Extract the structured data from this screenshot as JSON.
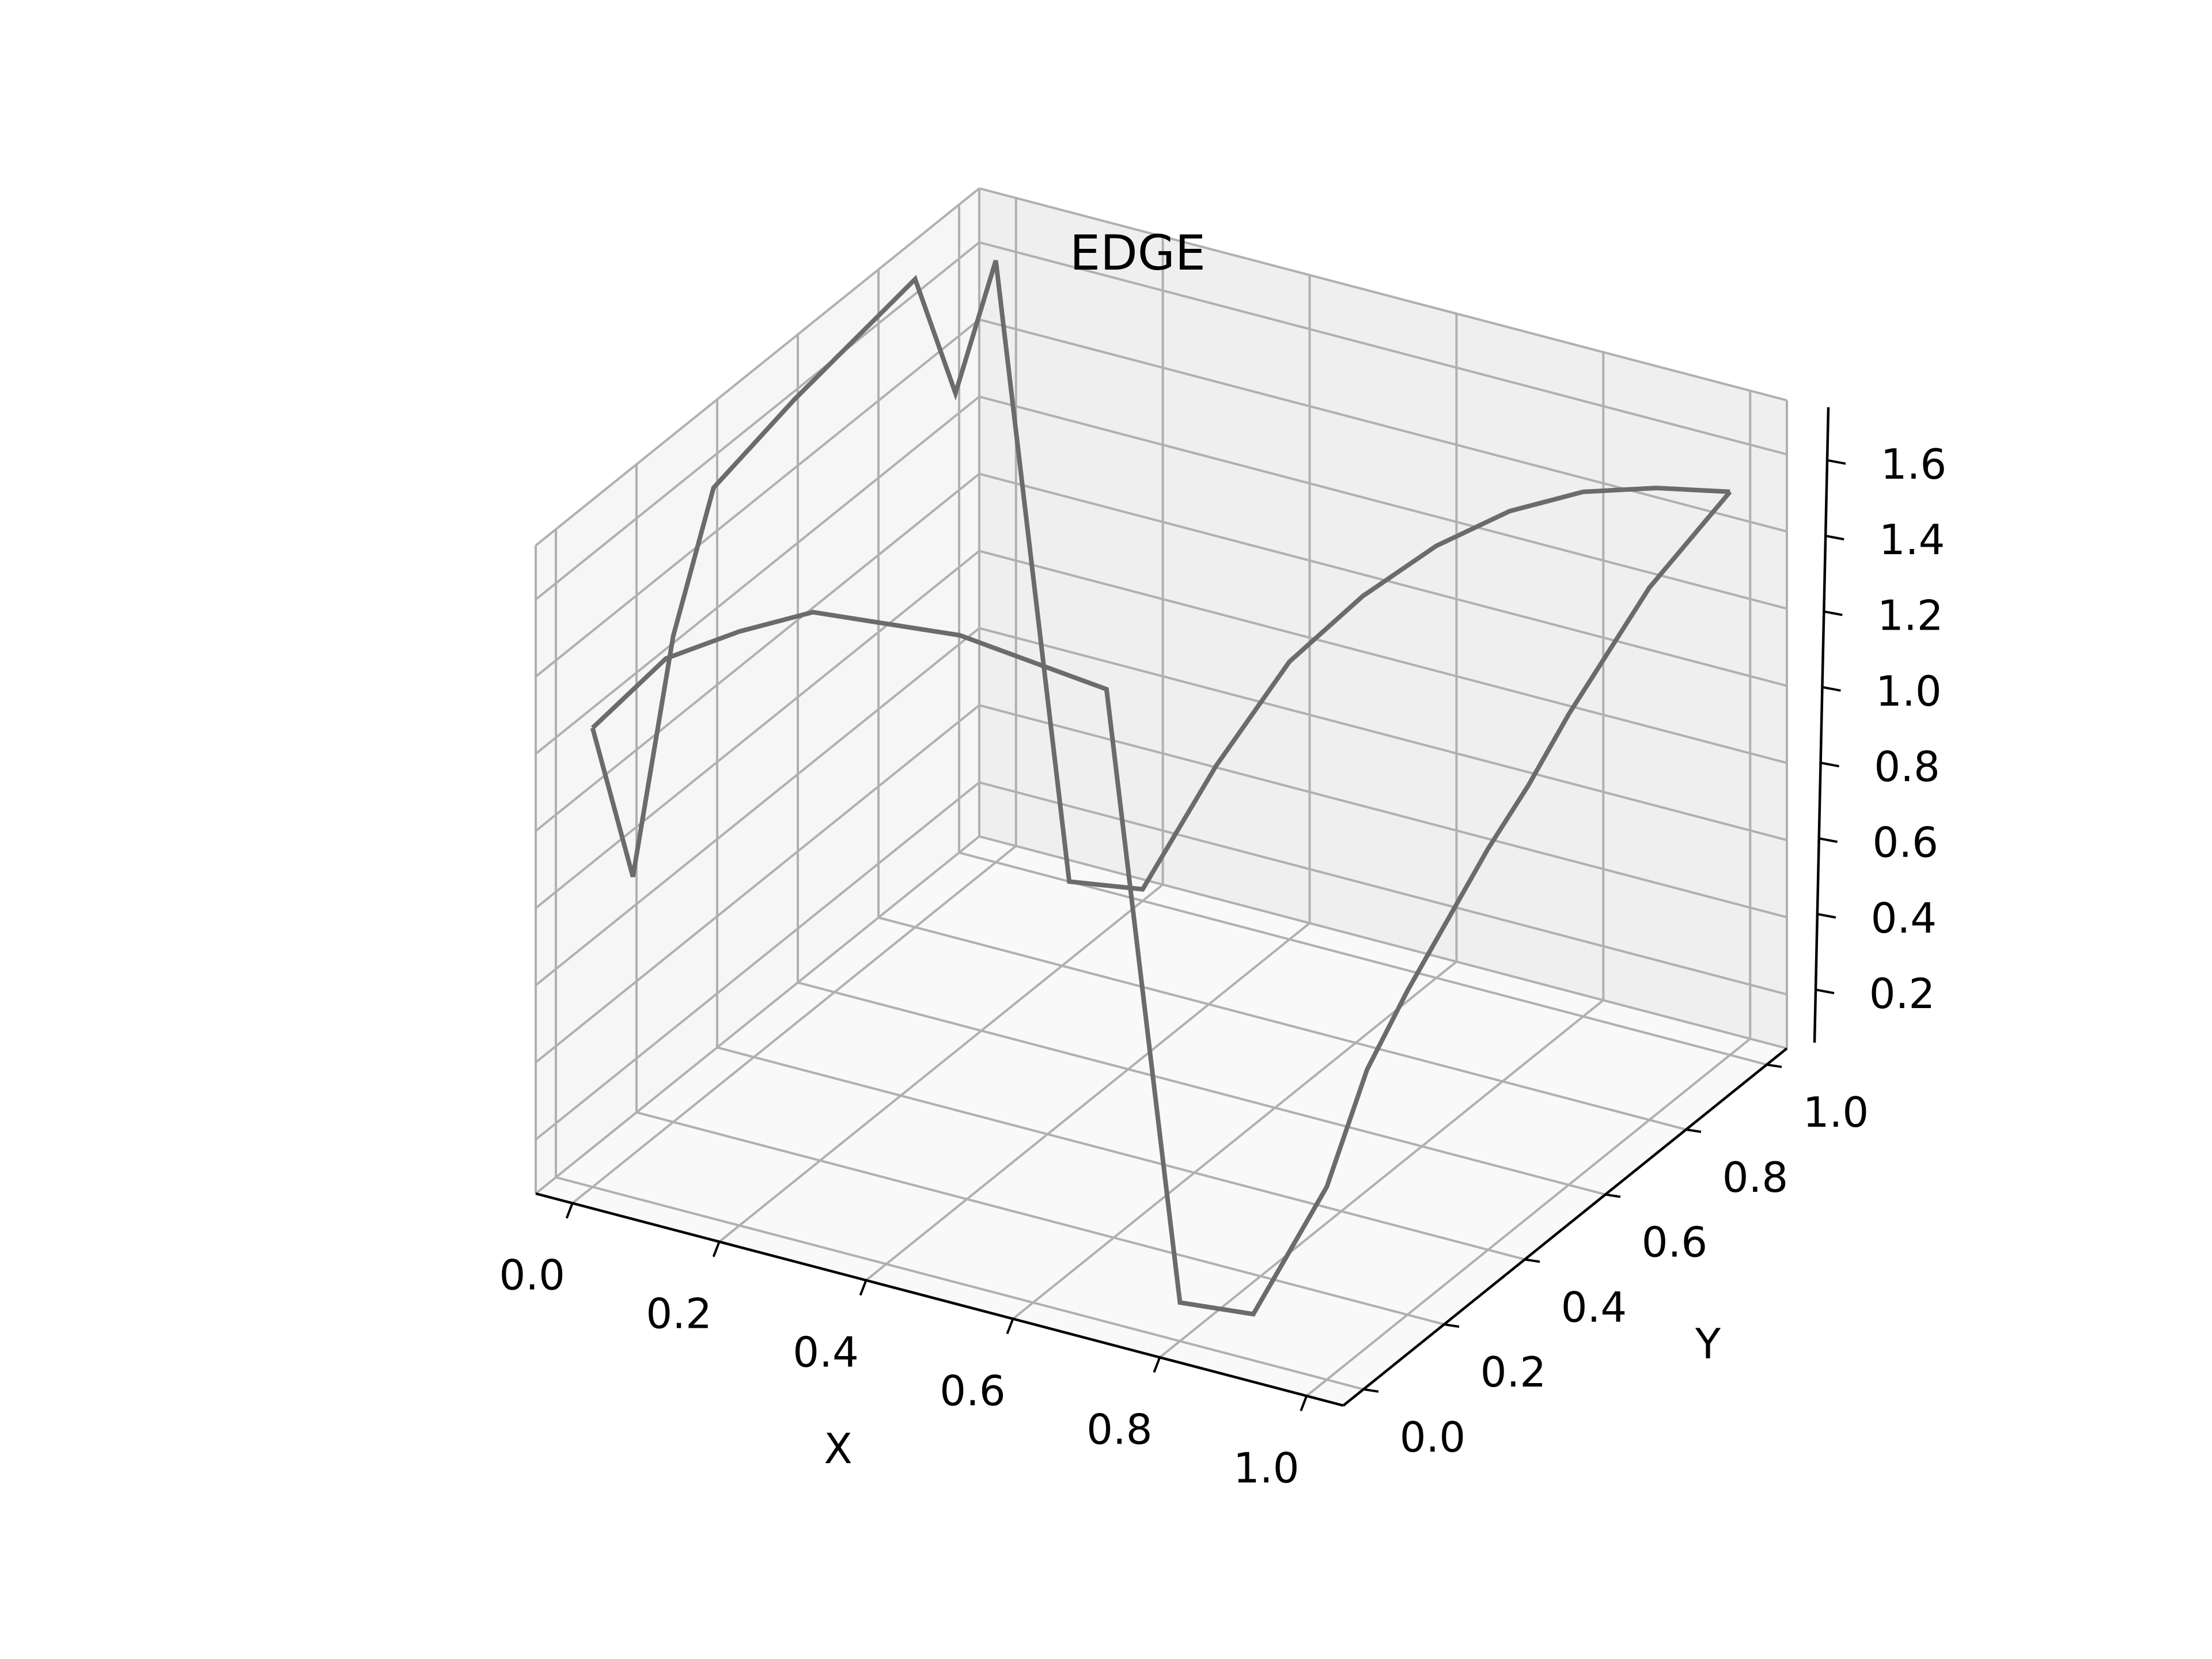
{
  "chart_data": {
    "type": "line",
    "projection": "3d",
    "title": "EDGE",
    "xlabel": "X",
    "ylabel": "Y",
    "zlabel": "",
    "x_ticks": [
      "0.0",
      "0.2",
      "0.4",
      "0.6",
      "0.8",
      "1.0"
    ],
    "y_ticks": [
      "0.0",
      "0.2",
      "0.4",
      "0.6",
      "0.8",
      "1.0"
    ],
    "z_ticks": [
      "0.2",
      "0.4",
      "0.6",
      "0.8",
      "1.0",
      "1.2",
      "1.4",
      "1.6"
    ],
    "xlim": [
      -0.05,
      1.05
    ],
    "ylim": [
      -0.05,
      1.05
    ],
    "zlim": [
      0.06,
      1.74
    ],
    "grid": true,
    "colors": {
      "line": "#6b6b6b",
      "pane_left": "#f6f6f6",
      "pane_right": "#efefef",
      "pane_floor": "#f9f9f9",
      "grid": "#b0b0b0",
      "axis": "#000000"
    },
    "series": [
      {
        "points": [
          {
            "x": 0.0,
            "y": 0.0,
            "z": 1.25
          },
          {
            "x": 0.0,
            "y": 0.1,
            "z": 0.78
          },
          {
            "x": 0.0,
            "y": 0.2,
            "z": 1.32
          },
          {
            "x": 0.0,
            "y": 0.3,
            "z": 1.62
          },
          {
            "x": 0.0,
            "y": 0.4,
            "z": 1.65
          },
          {
            "x": 0.0,
            "y": 0.5,
            "z": 1.68
          },
          {
            "x": 0.0,
            "y": 0.6,
            "z": 1.7
          },
          {
            "x": 0.0,
            "y": 0.7,
            "z": 1.72
          },
          {
            "x": 0.0,
            "y": 0.8,
            "z": 1.74
          },
          {
            "x": 0.0,
            "y": 0.9,
            "z": 1.36
          },
          {
            "x": 0.0,
            "y": 1.0,
            "z": 1.62
          },
          {
            "x": 0.1,
            "y": 1.0,
            "z": 0.06
          },
          {
            "x": 0.2,
            "y": 1.0,
            "z": 0.09
          },
          {
            "x": 0.3,
            "y": 1.0,
            "z": 0.46
          },
          {
            "x": 0.4,
            "y": 1.0,
            "z": 0.78
          },
          {
            "x": 0.5,
            "y": 1.0,
            "z": 1.0
          },
          {
            "x": 0.6,
            "y": 1.0,
            "z": 1.18
          },
          {
            "x": 0.7,
            "y": 1.0,
            "z": 1.32
          },
          {
            "x": 0.8,
            "y": 1.0,
            "z": 1.42
          },
          {
            "x": 0.9,
            "y": 1.0,
            "z": 1.48
          },
          {
            "x": 1.0,
            "y": 1.0,
            "z": 1.52
          }
        ]
      },
      {
        "points": [
          {
            "x": 0.0,
            "y": 0.0,
            "z": 1.25
          },
          {
            "x": 0.1,
            "y": 0.0,
            "z": 1.48
          },
          {
            "x": 0.2,
            "y": 0.0,
            "z": 1.6
          },
          {
            "x": 0.3,
            "y": 0.0,
            "z": 1.7
          },
          {
            "x": 0.4,
            "y": 0.0,
            "z": 1.72
          },
          {
            "x": 0.5,
            "y": 0.0,
            "z": 1.74
          },
          {
            "x": 0.6,
            "y": 0.0,
            "z": 1.72
          },
          {
            "x": 0.7,
            "y": 0.0,
            "z": 1.7
          },
          {
            "x": 0.8,
            "y": 0.0,
            "z": 0.16
          },
          {
            "x": 0.9,
            "y": 0.0,
            "z": 0.18
          },
          {
            "x": 1.0,
            "y": 0.0,
            "z": 0.56
          },
          {
            "x": 1.0,
            "y": 0.1,
            "z": 0.78
          },
          {
            "x": 1.0,
            "y": 0.2,
            "z": 0.9
          },
          {
            "x": 1.0,
            "y": 0.3,
            "z": 1.0
          },
          {
            "x": 1.0,
            "y": 0.4,
            "z": 1.1
          },
          {
            "x": 1.0,
            "y": 0.5,
            "z": 1.18
          },
          {
            "x": 1.0,
            "y": 0.6,
            "z": 1.28
          },
          {
            "x": 1.0,
            "y": 0.7,
            "z": 1.36
          },
          {
            "x": 1.0,
            "y": 0.8,
            "z": 1.44
          },
          {
            "x": 1.0,
            "y": 0.9,
            "z": 1.48
          },
          {
            "x": 1.0,
            "y": 1.0,
            "z": 1.52
          }
        ]
      }
    ]
  }
}
